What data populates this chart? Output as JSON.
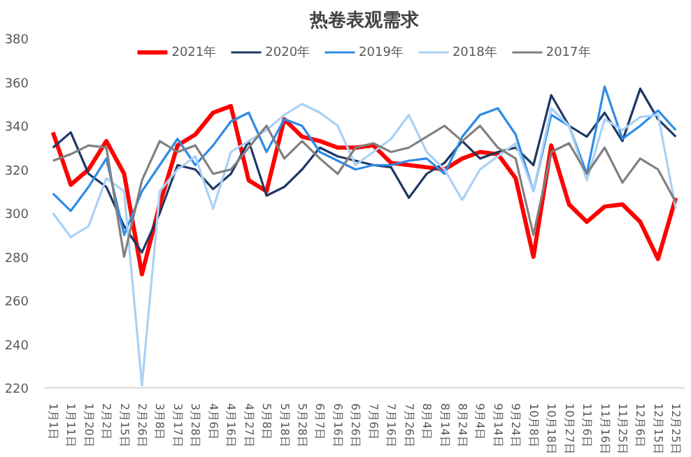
{
  "chart_data": {
    "type": "line",
    "title": "热卷表观需求",
    "categories": [
      "1月1日",
      "1月11日",
      "1月20日",
      "2月2日",
      "2月15日",
      "2月26日",
      "3月8日",
      "3月17日",
      "3月28日",
      "4月6日",
      "4月16日",
      "4月27日",
      "5月8日",
      "5月18日",
      "5月28日",
      "6月7日",
      "6月16日",
      "6月26日",
      "7月6日",
      "7月16日",
      "7月26日",
      "8月4日",
      "8月14日",
      "8月24日",
      "9月4日",
      "9月14日",
      "9月24日",
      "10月8日",
      "10月18日",
      "10月27日",
      "11月6日",
      "11月16日",
      "11月25日",
      "12月6日",
      "12月15日",
      "12月25日"
    ],
    "series": [
      {
        "name": "2021年",
        "color": "#ff0000",
        "values": [
          337,
          313,
          320,
          333,
          318,
          272,
          304,
          331,
          336,
          346,
          349,
          315,
          310,
          343,
          335,
          333,
          330,
          330,
          331,
          323,
          322,
          321,
          320,
          325,
          328,
          327,
          316,
          280,
          331,
          304,
          296,
          303,
          304,
          296,
          279,
          307
        ]
      },
      {
        "name": "2020年",
        "color": "#1f3864",
        "values": [
          330,
          337,
          318,
          312,
          294,
          282,
          300,
          322,
          320,
          311,
          318,
          333,
          308,
          312,
          320,
          330,
          326,
          324,
          322,
          321,
          307,
          318,
          323,
          333,
          325,
          328,
          330,
          322,
          354,
          340,
          335,
          346,
          333,
          357,
          343,
          335
        ]
      },
      {
        "name": "2019年",
        "color": "#2e8be6",
        "values": [
          309,
          301,
          312,
          325,
          290,
          310,
          322,
          334,
          322,
          331,
          342,
          346,
          328,
          343,
          340,
          328,
          324,
          320,
          322,
          322,
          324,
          325,
          318,
          335,
          345,
          348,
          336,
          310,
          345,
          340,
          318,
          358,
          334,
          340,
          347,
          338
        ]
      },
      {
        "name": "2018年",
        "color": "#a9d1f5",
        "values": [
          300,
          289,
          294,
          316,
          310,
          221,
          310,
          320,
          326,
          302,
          328,
          333,
          338,
          345,
          350,
          346,
          340,
          322,
          328,
          334,
          345,
          328,
          320,
          306,
          320,
          326,
          332,
          310,
          348,
          340,
          315,
          343,
          338,
          344,
          345,
          302
        ]
      },
      {
        "name": "2017年",
        "color": "#808080",
        "values": [
          324,
          327,
          331,
          330,
          280,
          315,
          333,
          328,
          331,
          318,
          320,
          330,
          340,
          325,
          333,
          325,
          318,
          330,
          332,
          328,
          330,
          335,
          340,
          333,
          340,
          330,
          325,
          290,
          328,
          332,
          318,
          330,
          314,
          325,
          320,
          305
        ]
      }
    ],
    "ylim": [
      220,
      380
    ],
    "yticks": [
      220,
      240,
      260,
      280,
      300,
      320,
      340,
      360,
      380
    ],
    "grid": false,
    "legend": "top"
  }
}
